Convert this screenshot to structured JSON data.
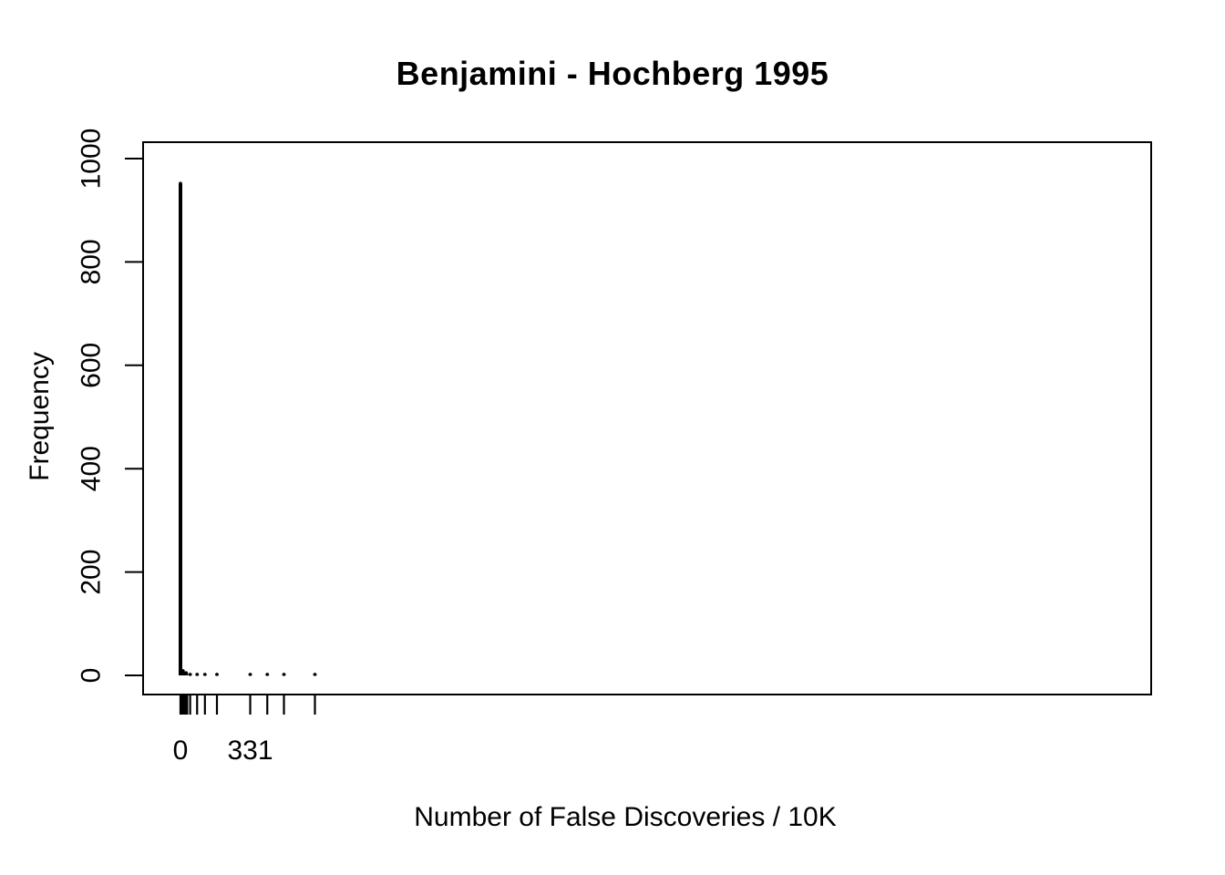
{
  "chart_data": {
    "type": "bar",
    "variant": "r-base-frequency-spike-plot",
    "title": "Benjamini - Hochberg 1995",
    "xlabel": "Number of False Discoveries / 10K",
    "ylabel": "Frequency",
    "ylim": [
      0,
      1000
    ],
    "y_ticks": [
      0,
      200,
      400,
      600,
      800,
      1000
    ],
    "xlim": [
      0,
      4600
    ],
    "x_ticks_labeled": [
      {
        "value": 0,
        "label": "0"
      },
      {
        "value": 331,
        "label": "331"
      }
    ],
    "points": [
      {
        "x": 0,
        "freq": 952
      },
      {
        "x": 12,
        "freq": 9
      },
      {
        "x": 27,
        "freq": 5
      },
      {
        "x": 46,
        "freq": 2
      },
      {
        "x": 79,
        "freq": 2
      },
      {
        "x": 116,
        "freq": 2
      },
      {
        "x": 173,
        "freq": 2
      },
      {
        "x": 331,
        "freq": 2
      },
      {
        "x": 412,
        "freq": 2
      },
      {
        "x": 491,
        "freq": 2
      },
      {
        "x": 638,
        "freq": 2
      }
    ],
    "rug_values": [
      0,
      8,
      16,
      24,
      32,
      46,
      79,
      116,
      173,
      331,
      412,
      491,
      638
    ],
    "grid": false,
    "legend": "none",
    "colors": {
      "foreground": "#000000",
      "background": "#ffffff"
    }
  }
}
